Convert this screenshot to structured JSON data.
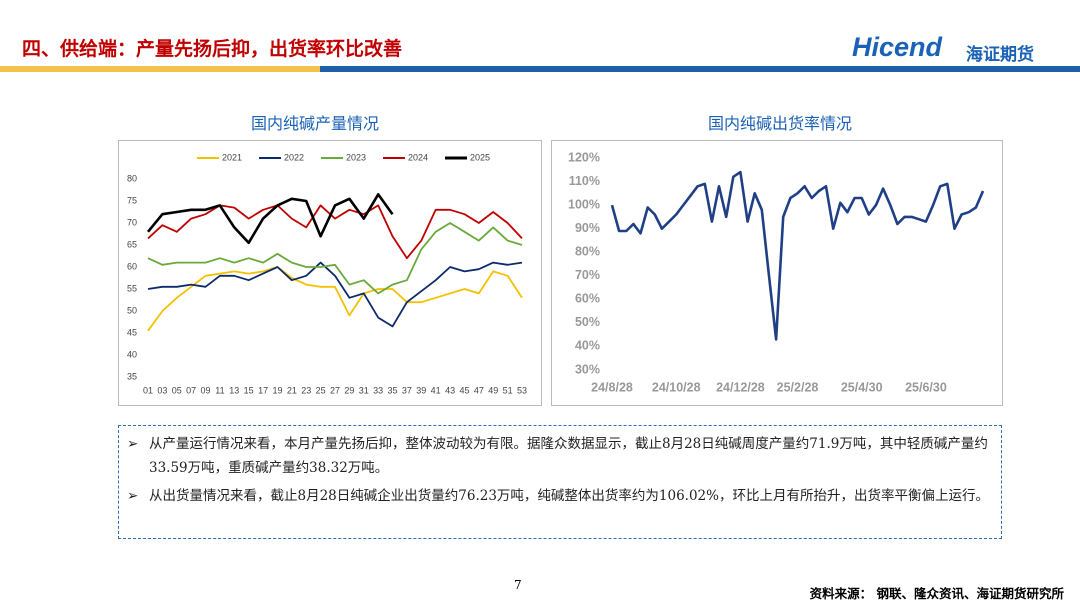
{
  "header": {
    "title": "四、供给端：产量先扬后抑，出货率环比改善",
    "logo": "Hicend",
    "logo_cn": "海证期货"
  },
  "chart_data": [
    {
      "type": "line",
      "title": "国内纯碱产量情况",
      "categories": [
        "01",
        "03",
        "05",
        "07",
        "09",
        "11",
        "13",
        "15",
        "17",
        "19",
        "21",
        "23",
        "25",
        "27",
        "29",
        "31",
        "33",
        "35",
        "37",
        "39",
        "41",
        "43",
        "45",
        "47",
        "49",
        "51",
        "53"
      ],
      "series": [
        {
          "name": "2021",
          "color": "#f5c000",
          "values": [
            45.5,
            50,
            53,
            55.5,
            58,
            58.5,
            59,
            58.5,
            59,
            60,
            57.5,
            56,
            55.5,
            55.5,
            49,
            54,
            55,
            55,
            52,
            52,
            53,
            54,
            55,
            54,
            59,
            58,
            53
          ]
        },
        {
          "name": "2022",
          "color": "#0d2a6b",
          "values": [
            55,
            55.5,
            55.5,
            56,
            55.5,
            58,
            58,
            57,
            58.5,
            60,
            57,
            58,
            61,
            58,
            53,
            54,
            48.5,
            46.5,
            52,
            54.5,
            57,
            60,
            59,
            59.5,
            61,
            60.5,
            61
          ]
        },
        {
          "name": "2023",
          "color": "#6aaa3a",
          "values": [
            62,
            60.5,
            61,
            61,
            61,
            62,
            61,
            62,
            61,
            63,
            61,
            60,
            60,
            60.5,
            56,
            57,
            54,
            56,
            57,
            64,
            68,
            70,
            68,
            66,
            69,
            66,
            65
          ]
        },
        {
          "name": "2024",
          "color": "#c00000",
          "values": [
            66.5,
            69.5,
            68,
            71,
            72,
            74,
            73.5,
            71,
            73,
            74,
            71,
            69,
            74,
            71,
            73,
            72,
            74,
            67,
            62,
            66,
            73,
            73,
            72,
            70,
            72.5,
            70,
            66.5
          ]
        },
        {
          "name": "2025",
          "color": "#000000",
          "values": [
            68,
            72,
            72.5,
            73,
            73,
            74,
            69,
            65.5,
            71,
            74,
            75.5,
            75,
            67,
            74,
            75.5,
            71,
            76.5,
            72,
            null,
            null,
            null,
            null,
            null,
            null,
            null,
            null,
            null
          ]
        }
      ],
      "ylim": [
        35,
        80
      ],
      "yticks": [
        35,
        40,
        45,
        50,
        55,
        60,
        65,
        70,
        75,
        80
      ],
      "grid": false,
      "legend": "top"
    },
    {
      "type": "line",
      "title": "国内纯碱出货率情况",
      "categories": [
        "24/8/28",
        null,
        null,
        null,
        null,
        null,
        null,
        null,
        null,
        "24/10/28",
        null,
        null,
        null,
        null,
        null,
        null,
        null,
        null,
        "24/12/28",
        null,
        null,
        null,
        null,
        null,
        null,
        null,
        "25/2/28",
        null,
        null,
        null,
        null,
        null,
        null,
        null,
        null,
        "25/4/30",
        null,
        null,
        null,
        null,
        null,
        null,
        null,
        null,
        "25/6/30",
        null,
        null,
        null,
        null,
        null,
        null,
        null,
        null
      ],
      "values": [
        100,
        89,
        89,
        92,
        88,
        99,
        96,
        90,
        93,
        96,
        100,
        104,
        108,
        109,
        93,
        108,
        95,
        112,
        114,
        93,
        105,
        98,
        70,
        43,
        95,
        103,
        105,
        108,
        103,
        106,
        108,
        90,
        101,
        97,
        103,
        103,
        96,
        100,
        107,
        100,
        92,
        95,
        95,
        94,
        93,
        100,
        108,
        109,
        90,
        96,
        97,
        99,
        106
      ],
      "color": "#1f3f86",
      "ylim": [
        30,
        120
      ],
      "yticks": [
        {
          "value": 30,
          "label": "30%"
        },
        {
          "value": 40,
          "label": "40%"
        },
        {
          "value": 50,
          "label": "50%"
        },
        {
          "value": 60,
          "label": "60%"
        },
        {
          "value": 70,
          "label": "70%"
        },
        {
          "value": 80,
          "label": "80%"
        },
        {
          "value": 90,
          "label": "90%"
        },
        {
          "value": 100,
          "label": "100%"
        },
        {
          "value": 110,
          "label": "110%"
        },
        {
          "value": 120,
          "label": "120%"
        }
      ],
      "grid": false
    }
  ],
  "bullets": [
    "从产量运行情况来看，本月产量先扬后抑，整体波动较为有限。据隆众数据显示，截止8月28日纯碱周度产量约71.9万吨，其中轻质碱产量约33.59万吨，重质碱产量约38.32万吨。",
    "从出货量情况来看，截止8月28日纯碱企业出货量约76.23万吨，纯碱整体出货率约为106.02%，环比上月有所抬升，出货率平衡偏上运行。"
  ],
  "footer": {
    "page": "7",
    "source": "资料来源：  钢联、隆众资讯、海证期货研究所"
  }
}
